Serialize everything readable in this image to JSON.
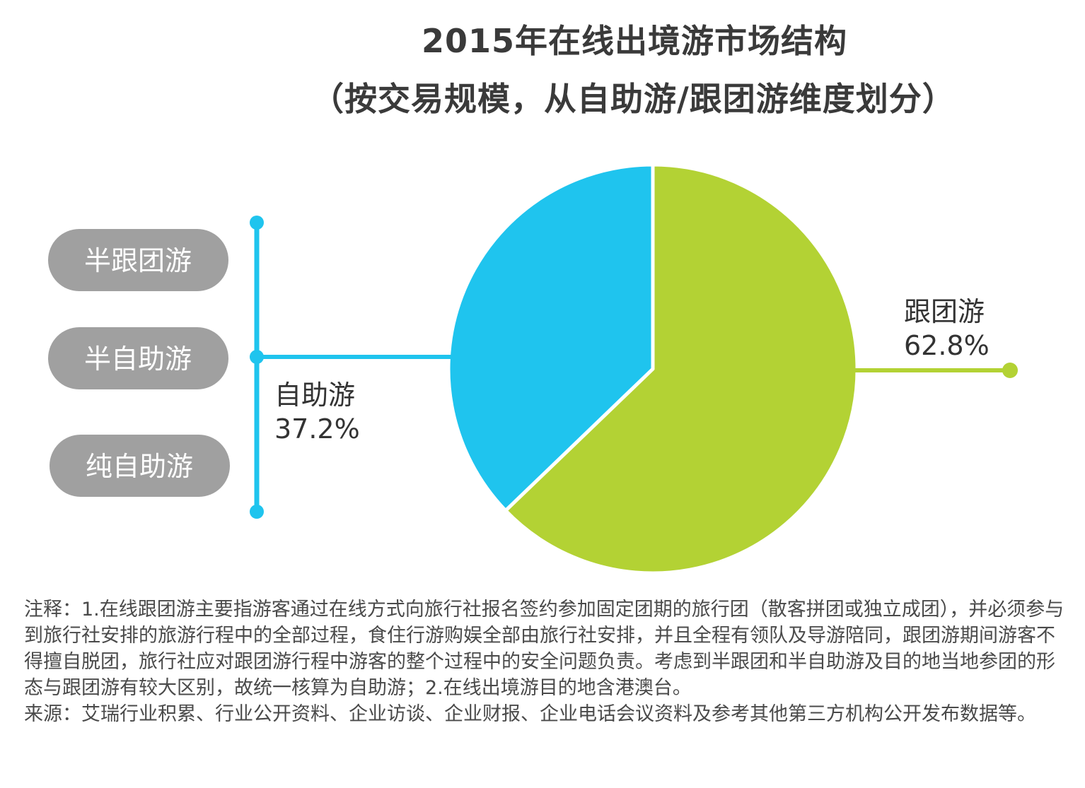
{
  "chart_data": {
    "type": "pie",
    "title": "2015年在线出境游市场结构",
    "subtitle": "（按交易规模，从自助游/跟团游维度划分）",
    "slices": [
      {
        "label": "跟团游",
        "value": 62.8,
        "display": "62.8%",
        "color": "#b3d234"
      },
      {
        "label": "自助游",
        "value": 37.2,
        "display": "37.2%",
        "color": "#1fc4ee"
      }
    ],
    "self_service_breakdown": [
      "半跟团游",
      "半自助游",
      "纯自助游"
    ],
    "colors": {
      "connector": "#1fc4ee",
      "pill": "#a0a0a0",
      "group_line": "#b3d234"
    }
  },
  "notes": {
    "note": "注释：1.在线跟团游主要指游客通过在线方式向旅行社报名签约参加固定团期的旅行团（散客拼团或独立成团），并必须参与到旅行社安排的旅游行程中的全部过程，食住行游购娱全部由旅行社安排，并且全程有领队及导游陪同，跟团游期间游客不得擅自脱团，旅行社应对跟团游行程中游客的整个过程中的安全问题负责。考虑到半跟团和半自助游及目的地当地参团的形态与跟团游有较大区别，故统一核算为自助游；2.在线出境游目的地含港澳台。",
    "source": "来源：艾瑞行业积累、行业公开资料、企业访谈、企业财报、企业电话会议资料及参考其他第三方机构公开发布数据等。"
  }
}
